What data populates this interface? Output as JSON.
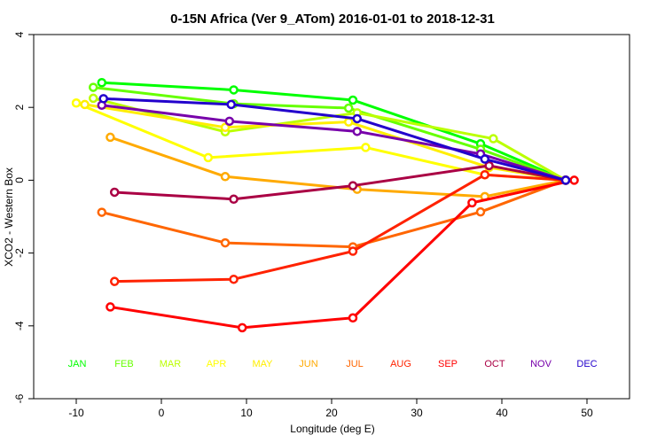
{
  "chart_data": {
    "type": "line",
    "title": "0-15N Africa (Ver 9_ATom)   2016-01-01 to 2018-12-31",
    "xlabel": "Longitude (deg E)",
    "ylabel": "XCO2 - Western Box",
    "xlim": [
      -15,
      55
    ],
    "ylim": [
      -6,
      4
    ],
    "xticks": [
      -10,
      0,
      10,
      20,
      30,
      40,
      50
    ],
    "yticks": [
      -6,
      -4,
      -2,
      0,
      2,
      4
    ],
    "grid": false,
    "legend": "month names in a row near the bottom of the plot",
    "series": [
      {
        "name": "JAN",
        "color": "#00ff00",
        "points": [
          [
            -7.0,
            2.68
          ],
          [
            8.5,
            2.48
          ],
          [
            22.5,
            2.2
          ],
          [
            37.5,
            1.0
          ],
          [
            47.5,
            0.0
          ]
        ]
      },
      {
        "name": "FEB",
        "color": "#66ff00",
        "points": [
          [
            -8.0,
            2.55
          ],
          [
            8.5,
            2.1
          ],
          [
            22.0,
            1.98
          ],
          [
            37.5,
            0.85
          ],
          [
            47.5,
            0.0
          ]
        ]
      },
      {
        "name": "MAR",
        "color": "#bbff00",
        "points": [
          [
            -8.0,
            2.25
          ],
          [
            7.5,
            1.33
          ],
          [
            23.0,
            1.85
          ],
          [
            39.0,
            1.14
          ],
          [
            47.5,
            0.0
          ]
        ]
      },
      {
        "name": "APR",
        "color": "#ffff00",
        "points": [
          [
            -10.0,
            2.12
          ],
          [
            5.5,
            0.62
          ],
          [
            24.0,
            0.9
          ],
          [
            38.0,
            0.15
          ],
          [
            47.5,
            0.0
          ]
        ]
      },
      {
        "name": "MAY",
        "color": "#ffee00",
        "points": [
          [
            -9.0,
            2.08
          ],
          [
            7.5,
            1.45
          ],
          [
            22.0,
            1.6
          ],
          [
            38.5,
            0.35
          ],
          [
            47.5,
            0.0
          ]
        ]
      },
      {
        "name": "JUN",
        "color": "#ffaa00",
        "points": [
          [
            -6.0,
            1.18
          ],
          [
            7.5,
            0.1
          ],
          [
            23.0,
            -0.25
          ],
          [
            38.0,
            -0.45
          ],
          [
            47.5,
            0.0
          ]
        ]
      },
      {
        "name": "JUL",
        "color": "#ff6600",
        "points": [
          [
            -7.0,
            -0.88
          ],
          [
            7.5,
            -1.72
          ],
          [
            22.5,
            -1.83
          ],
          [
            37.5,
            -0.87
          ],
          [
            47.5,
            0.0
          ]
        ]
      },
      {
        "name": "AUG",
        "color": "#ff2200",
        "points": [
          [
            -5.5,
            -2.78
          ],
          [
            8.5,
            -2.72
          ],
          [
            22.5,
            -1.95
          ],
          [
            38.0,
            0.15
          ],
          [
            47.5,
            0.0
          ]
        ]
      },
      {
        "name": "SEP",
        "color": "#ff0000",
        "points": [
          [
            -6.0,
            -3.48
          ],
          [
            9.5,
            -4.05
          ],
          [
            22.5,
            -3.78
          ],
          [
            36.5,
            -0.62
          ],
          [
            48.5,
            0.0
          ]
        ]
      },
      {
        "name": "OCT",
        "color": "#aa0044",
        "points": [
          [
            -5.5,
            -0.33
          ],
          [
            8.5,
            -0.52
          ],
          [
            22.5,
            -0.15
          ],
          [
            38.5,
            0.4
          ],
          [
            47.5,
            0.0
          ]
        ]
      },
      {
        "name": "NOV",
        "color": "#7700aa",
        "points": [
          [
            -7.0,
            2.06
          ],
          [
            8.0,
            1.62
          ],
          [
            23.0,
            1.34
          ],
          [
            37.5,
            0.72
          ],
          [
            47.5,
            0.0
          ]
        ]
      },
      {
        "name": "DEC",
        "color": "#2200cc",
        "points": [
          [
            -6.8,
            2.24
          ],
          [
            8.2,
            2.08
          ],
          [
            23.0,
            1.69
          ],
          [
            38.0,
            0.58
          ],
          [
            47.5,
            0.0
          ]
        ]
      }
    ],
    "legend_labels": [
      {
        "text": "JAN",
        "color": "#00ff00"
      },
      {
        "text": "FEB",
        "color": "#66ff00"
      },
      {
        "text": "MAR",
        "color": "#bbff00"
      },
      {
        "text": "APR",
        "color": "#ffff00"
      },
      {
        "text": "MAY",
        "color": "#ffee00"
      },
      {
        "text": "JUN",
        "color": "#ffaa00"
      },
      {
        "text": "JUL",
        "color": "#ff6600"
      },
      {
        "text": "AUG",
        "color": "#ff2200"
      },
      {
        "text": "SEP",
        "color": "#ff0000"
      },
      {
        "text": "OCT",
        "color": "#aa0044"
      },
      {
        "text": "NOV",
        "color": "#7700aa"
      },
      {
        "text": "DEC",
        "color": "#2200cc"
      }
    ]
  }
}
